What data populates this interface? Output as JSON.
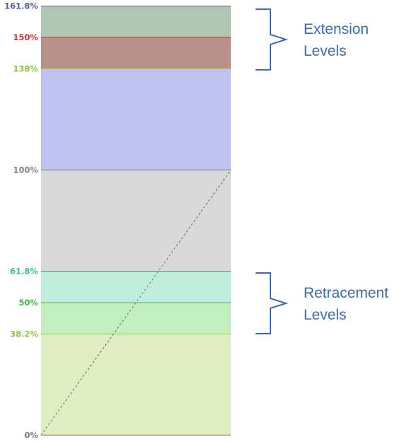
{
  "levels": [
    {
      "label": "161.8%",
      "value": 161.8,
      "line_color": "#5a5a9e",
      "label_color": "#5a5a9e"
    },
    {
      "label": "150%",
      "value": 150.0,
      "line_color": "#d03030",
      "label_color": "#d03030"
    },
    {
      "label": "138%",
      "value": 138.2,
      "line_color": "#9bcf3a",
      "label_color": "#8fc43a"
    },
    {
      "label": "100%",
      "value": 100.0,
      "line_color": "#8a8a9a",
      "label_color": "#888888"
    },
    {
      "label": "61.8%",
      "value": 61.8,
      "line_color": "#3aa07a",
      "label_color": "#3cc58a"
    },
    {
      "label": "50%",
      "value": 50.0,
      "line_color": "#3cbf3c",
      "label_color": "#3cbf3c"
    },
    {
      "label": "38.2%",
      "value": 38.2,
      "line_color": "#9bcf3a",
      "label_color": "#8fc43a"
    },
    {
      "label": "0%",
      "value": 0.0,
      "line_color": "#777777",
      "label_color": "#777777"
    }
  ],
  "bands": [
    {
      "from": 150.0,
      "to": 161.8,
      "color": "#b2c5b2"
    },
    {
      "from": 138.2,
      "to": 150.0,
      "color": "#b9918b"
    },
    {
      "from": 100.0,
      "to": 138.2,
      "color": "#c0c2f0"
    },
    {
      "from": 61.8,
      "to": 100.0,
      "color": "#d9d9d9"
    },
    {
      "from": 50.0,
      "to": 61.8,
      "color": "#c0eedd"
    },
    {
      "from": 38.2,
      "to": 50.0,
      "color": "#c2efc0"
    },
    {
      "from": 0.0,
      "to": 38.2,
      "color": "#dfeec2"
    }
  ],
  "annotations": {
    "extension": {
      "line1": "Extension",
      "line2": "Levels"
    },
    "retracement": {
      "line1": "Retracement",
      "line2": "Levels"
    }
  },
  "colors": {
    "annotation": "#3d6bb3",
    "trend_line": "#666666"
  }
}
